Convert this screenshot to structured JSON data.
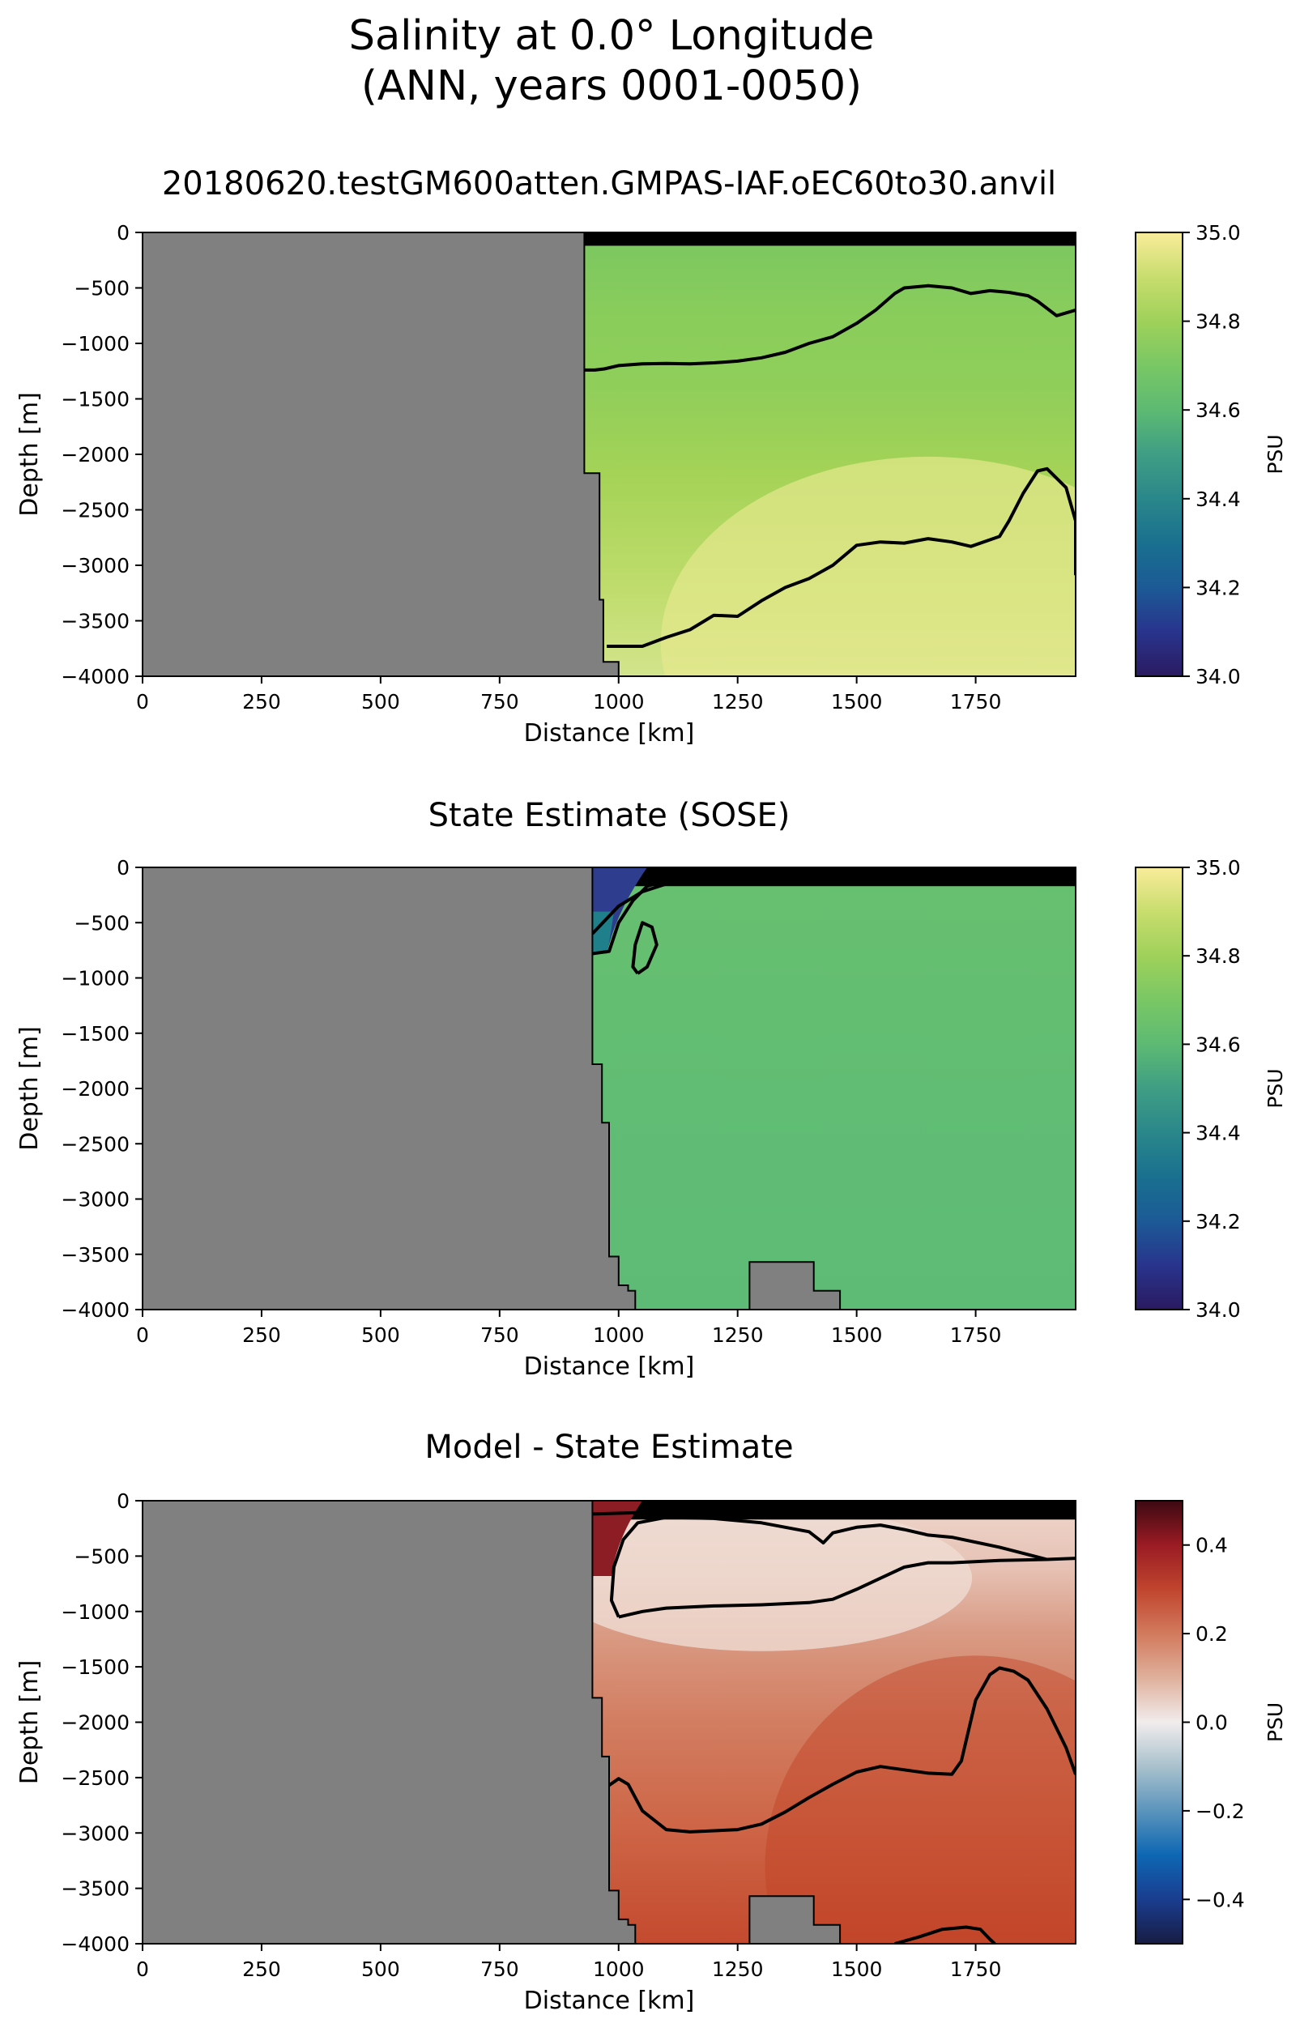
{
  "figure": {
    "title_line1": "Salinity at 0.0° Longitude",
    "title_line2": "(ANN, years 0001-0050)"
  },
  "chart_data": [
    {
      "type": "heatmap",
      "title": "20180620.testGM600atten.GMPAS-IAF.oEC60to30.anvil",
      "xlabel": "Distance [km]",
      "ylabel": "Depth [m]",
      "xlim": [
        0,
        1960
      ],
      "ylim": [
        -4000,
        0
      ],
      "xticks": [
        0,
        250,
        500,
        750,
        1000,
        1250,
        1500,
        1750
      ],
      "yticks": [
        0,
        -500,
        -1000,
        -1500,
        -2000,
        -2500,
        -3000,
        -3500,
        -4000
      ],
      "colorbar": {
        "label": "PSU",
        "range": [
          34.0,
          35.0
        ],
        "ticks": [
          "34.0",
          "34.2",
          "34.4",
          "34.6",
          "34.8",
          "35.0"
        ],
        "colormap": "haline"
      },
      "land_color": "#808080",
      "field_description": "salinity ~34.78 near 500 m grading to ~34.95 near the bottom east of 1400 km; fresher thin surface layer",
      "bathymetry": [
        [
          0,
          0
        ],
        [
          928,
          0
        ],
        [
          928,
          -2170
        ],
        [
          960,
          -2170
        ],
        [
          960,
          -3310
        ],
        [
          968,
          -3310
        ],
        [
          968,
          -3870
        ],
        [
          1000,
          -3870
        ],
        [
          1000,
          -4000
        ]
      ],
      "contours": [
        {
          "level": "upper",
          "points": [
            [
              928,
              -1240
            ],
            [
              950,
              -1240
            ],
            [
              970,
              -1230
            ],
            [
              1000,
              -1200
            ],
            [
              1050,
              -1185
            ],
            [
              1100,
              -1180
            ],
            [
              1150,
              -1185
            ],
            [
              1200,
              -1175
            ],
            [
              1250,
              -1160
            ],
            [
              1300,
              -1130
            ],
            [
              1350,
              -1080
            ],
            [
              1400,
              -1000
            ],
            [
              1450,
              -940
            ],
            [
              1500,
              -820
            ],
            [
              1540,
              -700
            ],
            [
              1580,
              -550
            ],
            [
              1600,
              -500
            ],
            [
              1650,
              -480
            ],
            [
              1700,
              -500
            ],
            [
              1740,
              -550
            ],
            [
              1780,
              -525
            ],
            [
              1820,
              -540
            ],
            [
              1860,
              -570
            ],
            [
              1880,
              -620
            ],
            [
              1920,
              -750
            ],
            [
              1960,
              -700
            ]
          ]
        },
        {
          "level": "deep",
          "points": [
            [
              975,
              -3730
            ],
            [
              1000,
              -3730
            ],
            [
              1050,
              -3730
            ],
            [
              1100,
              -3650
            ],
            [
              1150,
              -3580
            ],
            [
              1200,
              -3450
            ],
            [
              1250,
              -3460
            ],
            [
              1300,
              -3320
            ],
            [
              1350,
              -3200
            ],
            [
              1400,
              -3120
            ],
            [
              1450,
              -3000
            ],
            [
              1500,
              -2820
            ],
            [
              1550,
              -2790
            ],
            [
              1600,
              -2800
            ],
            [
              1650,
              -2760
            ],
            [
              1700,
              -2790
            ],
            [
              1740,
              -2830
            ],
            [
              1800,
              -2740
            ],
            [
              1820,
              -2600
            ],
            [
              1850,
              -2350
            ],
            [
              1880,
              -2150
            ],
            [
              1900,
              -2130
            ],
            [
              1940,
              -2300
            ],
            [
              1960,
              -2600
            ],
            [
              1990,
              -2850
            ],
            [
              2040,
              -3050
            ],
            [
              1960,
              -3090
            ]
          ]
        },
        {
          "level": "surface",
          "points": [
            [
              928,
              -100
            ],
            [
              1100,
              -90
            ],
            [
              1300,
              -75
            ],
            [
              1500,
              -75
            ],
            [
              1700,
              -80
            ],
            [
              1960,
              -70
            ]
          ]
        }
      ]
    },
    {
      "type": "heatmap",
      "title": "State Estimate (SOSE)",
      "xlabel": "Distance [km]",
      "ylabel": "Depth [m]",
      "xlim": [
        0,
        1960
      ],
      "ylim": [
        -4000,
        0
      ],
      "xticks": [
        0,
        250,
        500,
        750,
        1000,
        1250,
        1500,
        1750
      ],
      "yticks": [
        0,
        -500,
        -1000,
        -1500,
        -2000,
        -2500,
        -3000,
        -3500,
        -4000
      ],
      "colorbar": {
        "label": "PSU",
        "range": [
          34.0,
          35.0
        ],
        "ticks": [
          "34.0",
          "34.2",
          "34.4",
          "34.6",
          "34.8",
          "35.0"
        ],
        "colormap": "haline"
      },
      "land_color": "#808080",
      "field_description": "nearly uniform ~34.68; strong fresh surface stratification near 945-1000 km",
      "bathymetry": [
        [
          0,
          0
        ],
        [
          945,
          0
        ],
        [
          945,
          -1780
        ],
        [
          965,
          -1780
        ],
        [
          965,
          -2310
        ],
        [
          980,
          -2310
        ],
        [
          980,
          -3520
        ],
        [
          1000,
          -3520
        ],
        [
          1000,
          -3780
        ],
        [
          1020,
          -3780
        ],
        [
          1020,
          -3830
        ],
        [
          1035,
          -3830
        ],
        [
          1035,
          -4000
        ]
      ],
      "seamount": [
        [
          1275,
          -4000
        ],
        [
          1275,
          -3570
        ],
        [
          1410,
          -3570
        ],
        [
          1410,
          -3830
        ],
        [
          1465,
          -3830
        ],
        [
          1465,
          -4000
        ]
      ],
      "contours": [
        {
          "level": "eddy",
          "points": [
            [
              1040,
              -960
            ],
            [
              1030,
              -900
            ],
            [
              1035,
              -700
            ],
            [
              1050,
              -500
            ],
            [
              1070,
              -540
            ],
            [
              1080,
              -700
            ],
            [
              1060,
              -900
            ],
            [
              1040,
              -960
            ]
          ]
        },
        {
          "level": "surface",
          "points": [
            [
              945,
              -780
            ],
            [
              980,
              -760
            ],
            [
              1000,
              -500
            ],
            [
              1030,
              -300
            ],
            [
              1060,
              -170
            ],
            [
              1100,
              -120
            ],
            [
              1200,
              -110
            ],
            [
              1300,
              -115
            ],
            [
              1400,
              -110
            ],
            [
              1500,
              -120
            ],
            [
              1600,
              -120
            ],
            [
              1700,
              -125
            ],
            [
              1800,
              -130
            ],
            [
              1960,
              -140
            ]
          ]
        },
        {
          "level": "surface-2",
          "points": [
            [
              945,
              -600
            ],
            [
              1000,
              -350
            ],
            [
              1050,
              -220
            ],
            [
              1100,
              -150
            ],
            [
              1200,
              -130
            ],
            [
              1400,
              -130
            ],
            [
              1960,
              -150
            ]
          ]
        }
      ]
    },
    {
      "type": "heatmap",
      "title": "Model - State Estimate",
      "xlabel": "Distance [km]",
      "ylabel": "Depth [m]",
      "xlim": [
        0,
        1960
      ],
      "ylim": [
        -4000,
        0
      ],
      "xticks": [
        0,
        250,
        500,
        750,
        1000,
        1250,
        1500,
        1750
      ],
      "yticks": [
        0,
        -500,
        -1000,
        -1500,
        -2000,
        -2500,
        -3000,
        -3500,
        -4000
      ],
      "colorbar": {
        "label": "PSU",
        "range": [
          -0.5,
          0.5
        ],
        "ticks": [
          "−0.4",
          "−0.2",
          "0.0",
          "0.2",
          "0.4"
        ],
        "colormap": "balance"
      },
      "land_color": "#808080",
      "field_description": "positive differences ~0.05-0.15 near 500-1000 m increasing to ~0.25 at depth",
      "bathymetry": [
        [
          0,
          0
        ],
        [
          945,
          0
        ],
        [
          945,
          -1780
        ],
        [
          965,
          -1780
        ],
        [
          965,
          -2310
        ],
        [
          980,
          -2310
        ],
        [
          980,
          -3520
        ],
        [
          1000,
          -3520
        ],
        [
          1000,
          -3780
        ],
        [
          1020,
          -3780
        ],
        [
          1020,
          -3830
        ],
        [
          1035,
          -3830
        ],
        [
          1035,
          -4000
        ]
      ],
      "seamount": [
        [
          1275,
          -4000
        ],
        [
          1275,
          -3570
        ],
        [
          1410,
          -3570
        ],
        [
          1410,
          -3830
        ],
        [
          1465,
          -3830
        ],
        [
          1465,
          -4000
        ]
      ],
      "contours": [
        {
          "level": "upper-loop",
          "points": [
            [
              1000,
              -1050
            ],
            [
              985,
              -900
            ],
            [
              990,
              -600
            ],
            [
              1010,
              -350
            ],
            [
              1040,
              -200
            ],
            [
              1100,
              -150
            ],
            [
              1200,
              -160
            ],
            [
              1300,
              -200
            ],
            [
              1400,
              -280
            ],
            [
              1430,
              -380
            ],
            [
              1450,
              -290
            ],
            [
              1500,
              -240
            ],
            [
              1550,
              -220
            ],
            [
              1600,
              -260
            ],
            [
              1650,
              -310
            ],
            [
              1700,
              -330
            ],
            [
              1800,
              -420
            ],
            [
              1900,
              -530
            ],
            [
              1960,
              -520
            ]
          ]
        },
        {
          "level": "upper-lower",
          "points": [
            [
              1000,
              -1050
            ],
            [
              1050,
              -1000
            ],
            [
              1100,
              -970
            ],
            [
              1200,
              -950
            ],
            [
              1300,
              -940
            ],
            [
              1400,
              -920
            ],
            [
              1450,
              -890
            ],
            [
              1500,
              -800
            ],
            [
              1550,
              -700
            ],
            [
              1600,
              -600
            ],
            [
              1650,
              -560
            ],
            [
              1700,
              -560
            ],
            [
              1800,
              -540
            ],
            [
              1900,
              -530
            ]
          ]
        },
        {
          "level": "middle",
          "points": [
            [
              980,
              -2570
            ],
            [
              1000,
              -2510
            ],
            [
              1020,
              -2560
            ],
            [
              1050,
              -2800
            ],
            [
              1100,
              -2970
            ],
            [
              1150,
              -2990
            ],
            [
              1200,
              -2980
            ],
            [
              1250,
              -2970
            ],
            [
              1300,
              -2920
            ],
            [
              1350,
              -2810
            ],
            [
              1400,
              -2680
            ],
            [
              1450,
              -2560
            ],
            [
              1500,
              -2450
            ],
            [
              1550,
              -2400
            ],
            [
              1600,
              -2430
            ],
            [
              1650,
              -2460
            ],
            [
              1700,
              -2470
            ],
            [
              1720,
              -2350
            ],
            [
              1750,
              -1800
            ],
            [
              1780,
              -1570
            ],
            [
              1800,
              -1510
            ],
            [
              1830,
              -1540
            ],
            [
              1860,
              -1620
            ],
            [
              1900,
              -1880
            ],
            [
              1940,
              -2230
            ],
            [
              1960,
              -2470
            ]
          ]
        },
        {
          "level": "bottom",
          "points": [
            [
              1580,
              -4000
            ],
            [
              1630,
              -3940
            ],
            [
              1680,
              -3870
            ],
            [
              1730,
              -3850
            ],
            [
              1760,
              -3870
            ],
            [
              1780,
              -3960
            ],
            [
              1790,
              -4000
            ]
          ]
        },
        {
          "level": "surface",
          "points": [
            [
              945,
              -120
            ],
            [
              1100,
              -100
            ],
            [
              1300,
              -90
            ],
            [
              1500,
              -100
            ],
            [
              1700,
              -110
            ],
            [
              1960,
              -120
            ]
          ]
        }
      ]
    }
  ]
}
